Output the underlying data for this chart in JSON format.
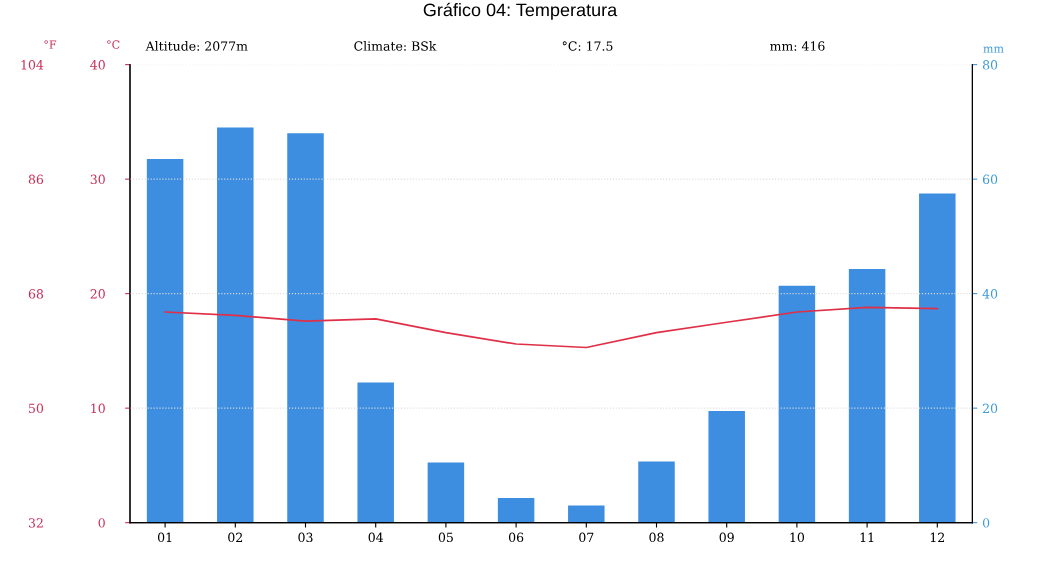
{
  "chart_data": {
    "type": "bar",
    "title": "Gráfico 04: Temperatura",
    "annotations": [
      "Altitude: 2077m",
      "Climate: BSk",
      "°C: 17.5",
      "mm: 416"
    ],
    "categories": [
      "01",
      "02",
      "03",
      "04",
      "05",
      "06",
      "07",
      "08",
      "09",
      "10",
      "11",
      "12"
    ],
    "series": [
      {
        "axis": "y2",
        "color": "#3d8ee0",
        "values": [
          63.5,
          69,
          68,
          24.5,
          10.5,
          4.3,
          3,
          10.7,
          19.5,
          41.4,
          44.3,
          57.5
        ]
      },
      {
        "type": "line",
        "axis": "y",
        "color": "#e03048",
        "values": [
          18.4,
          18.1,
          17.6,
          17.8,
          16.6,
          15.6,
          15.3,
          16.6,
          17.5,
          18.4,
          18.8,
          18.7
        ]
      }
    ],
    "ylabel": "°C",
    "ylim": [
      0,
      40
    ],
    "yticks": [
      0,
      10,
      20,
      30,
      40
    ],
    "y2label": "mm",
    "y2lim": [
      0,
      80
    ],
    "y2ticks": [
      0,
      20,
      40,
      60,
      80
    ],
    "y3label": "°F",
    "y3lim": [
      32,
      104
    ],
    "y3ticks": [
      32,
      50,
      68,
      86,
      104
    ],
    "grid": "y",
    "legend": false,
    "marker": "none",
    "line_style": "solid"
  }
}
